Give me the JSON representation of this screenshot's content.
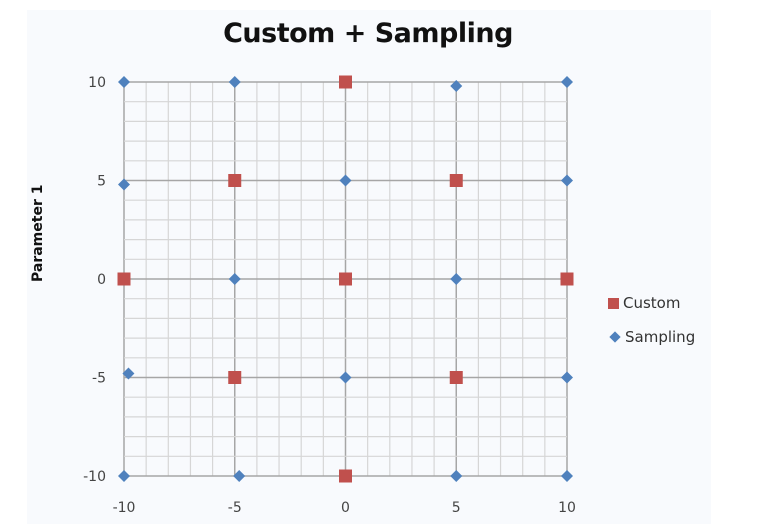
{
  "chart_data": {
    "type": "scatter",
    "title": "Custom + Sampling",
    "xlabel": "",
    "ylabel": "Parameter 1",
    "xlim": [
      -10,
      10
    ],
    "ylim": [
      -10,
      10
    ],
    "x_ticks": [
      "-10",
      "-5",
      "0",
      "5",
      "10"
    ],
    "y_ticks": [
      "10",
      "5",
      "0",
      "-5",
      "-10"
    ],
    "grid": {
      "major": 5,
      "minor": 1
    },
    "legend_position": "right",
    "series": [
      {
        "name": "Custom",
        "marker": "square",
        "color": "#c0504d",
        "points": [
          [
            0,
            10
          ],
          [
            -5,
            5
          ],
          [
            5,
            5
          ],
          [
            -10,
            0
          ],
          [
            0,
            0
          ],
          [
            10,
            0
          ],
          [
            -5,
            -5
          ],
          [
            5,
            -5
          ],
          [
            0,
            -10
          ]
        ]
      },
      {
        "name": "Sampling",
        "marker": "diamond",
        "color": "#4f81bd",
        "points": [
          [
            -10,
            10
          ],
          [
            -5,
            10
          ],
          [
            5,
            9.8
          ],
          [
            10,
            10
          ],
          [
            -10,
            4.8
          ],
          [
            0,
            5
          ],
          [
            10,
            5
          ],
          [
            -5,
            0
          ],
          [
            5,
            0
          ],
          [
            -9.8,
            -4.8
          ],
          [
            0,
            -5
          ],
          [
            10,
            -5
          ],
          [
            -10,
            -10
          ],
          [
            -4.8,
            -10
          ],
          [
            5,
            -10
          ],
          [
            10,
            -10
          ]
        ]
      }
    ]
  },
  "legend": {
    "custom": "Custom",
    "sampling": "Sampling"
  }
}
